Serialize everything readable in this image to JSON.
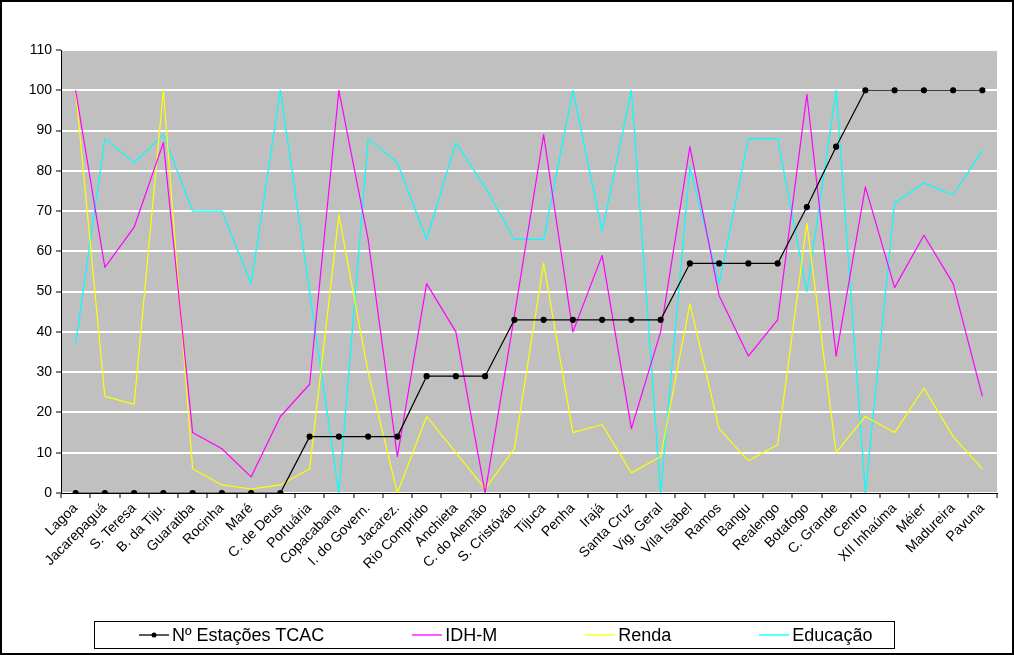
{
  "chart_data": {
    "type": "line",
    "categories": [
      "Lagoa",
      "Jacarepaguá",
      "S. Teresa",
      "B. da Tiju.",
      "Guaratiba",
      "Rocinha",
      "Maré",
      "C. de Deus",
      "Portuária",
      "Copacabana",
      "I. do Govern.",
      "Jacarez.",
      "Rio Comprido",
      "Anchieta",
      "C. do Alemão",
      "S. Cristóvão",
      "Tijuca",
      "Penha",
      "Irajá",
      "Santa Cruz",
      "Vig. Geral",
      "Vila Isabel",
      "Ramos",
      "Bangu",
      "Realengo",
      "Botafogo",
      "C. Grande",
      "Centro",
      "XII Inhaúma",
      "Méier",
      "Madureira",
      "Pavuna"
    ],
    "series": [
      {
        "name": "Nº Estações TCAC",
        "color": "#000000",
        "marker": "circle",
        "values": [
          0,
          0,
          0,
          0,
          0,
          0,
          0,
          0,
          14,
          14,
          14,
          14,
          29,
          29,
          29,
          43,
          43,
          43,
          43,
          43,
          43,
          57,
          57,
          57,
          57,
          71,
          86,
          100,
          100,
          100,
          100,
          100
        ]
      },
      {
        "name": "IDH-M",
        "color": "#ff00ff",
        "values": [
          100,
          56,
          66,
          87,
          15,
          11,
          4,
          19,
          27,
          100,
          63,
          9,
          52,
          40,
          0,
          44,
          89,
          40,
          59,
          16,
          40,
          86,
          49,
          34,
          43,
          99,
          34,
          76,
          51,
          64,
          52,
          24
        ]
      },
      {
        "name": "Renda",
        "color": "#ffff00",
        "values": [
          100,
          24,
          22,
          100,
          6,
          2,
          1,
          2,
          6,
          69,
          30,
          0,
          19,
          10,
          1,
          11,
          57,
          15,
          17,
          5,
          9,
          47,
          16,
          8,
          12,
          67,
          10,
          19,
          15,
          26,
          14,
          6
        ]
      },
      {
        "name": "Educação",
        "color": "#00ffff",
        "values": [
          37,
          88,
          82,
          89,
          70,
          70,
          52,
          100,
          50,
          0,
          88,
          82,
          63,
          87,
          76,
          63,
          63,
          100,
          65,
          100,
          0,
          81,
          52,
          88,
          88,
          50,
          100,
          0,
          72,
          77,
          74,
          85
        ]
      }
    ],
    "ylim": [
      0,
      110
    ],
    "yticks": [
      0,
      10,
      20,
      30,
      40,
      50,
      60,
      70,
      80,
      90,
      100,
      110
    ],
    "grid": "y",
    "legend": "bottom"
  }
}
